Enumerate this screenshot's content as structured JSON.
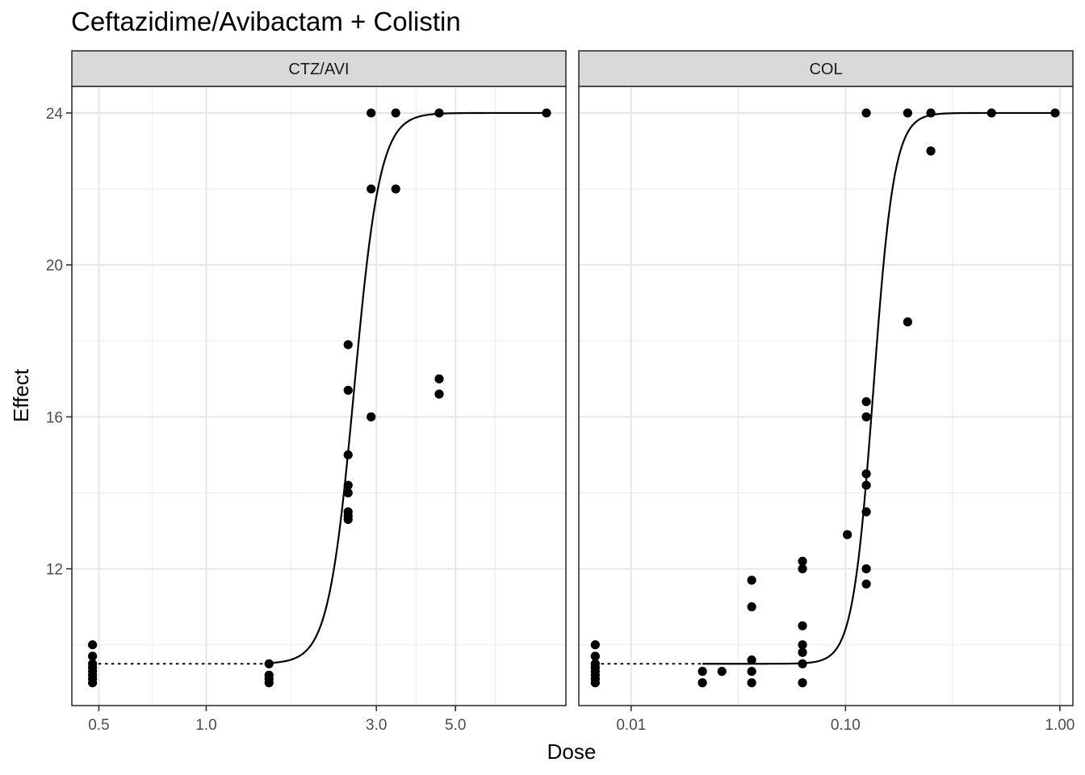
{
  "title": "Ceftazidime/Avibactam + Colistin",
  "xlabel": "Dose",
  "ylabel": "Effect",
  "chart_data": [
    {
      "type": "scatter",
      "panel": "CTZ/AVI",
      "x_scale": "log10",
      "xlim": [
        0.42,
        10.2
      ],
      "ylim": [
        8.4,
        24.7
      ],
      "x_ticks": [
        0.5,
        1.0,
        3.0,
        5.0
      ],
      "x_tick_labels": [
        "0.5",
        "1.0",
        "3.0",
        "5.0"
      ],
      "y_ticks": [
        12,
        16,
        20,
        24
      ],
      "y_tick_labels": [
        "12",
        "16",
        "20",
        "24"
      ],
      "points": [
        [
          0.48,
          10.0
        ],
        [
          0.48,
          9.7
        ],
        [
          0.48,
          9.5
        ],
        [
          0.48,
          9.4
        ],
        [
          0.48,
          9.3
        ],
        [
          0.48,
          9.2
        ],
        [
          0.48,
          9.1
        ],
        [
          0.48,
          9.0
        ],
        [
          1.5,
          9.5
        ],
        [
          1.5,
          9.2
        ],
        [
          1.5,
          9.1
        ],
        [
          1.5,
          9.0
        ],
        [
          2.5,
          17.9
        ],
        [
          2.5,
          16.7
        ],
        [
          2.5,
          15.0
        ],
        [
          2.5,
          14.2
        ],
        [
          2.5,
          14.0
        ],
        [
          2.5,
          13.5
        ],
        [
          2.5,
          13.4
        ],
        [
          2.5,
          13.3
        ],
        [
          2.9,
          24.0
        ],
        [
          2.9,
          22.0
        ],
        [
          2.9,
          16.0
        ],
        [
          3.4,
          24.0
        ],
        [
          3.4,
          22.0
        ],
        [
          4.5,
          24.0
        ],
        [
          4.5,
          17.0
        ],
        [
          4.5,
          16.6
        ],
        [
          9.0,
          24.0
        ]
      ],
      "curve": {
        "model": "4-parameter log-logistic",
        "bottom": 9.5,
        "top": 24.0,
        "ec50": 2.6,
        "hill": 12,
        "x_from": 1.5,
        "x_to": 9.0
      },
      "reference_line": {
        "style": "dotted",
        "y": 9.5,
        "x_from": 0.48,
        "x_to": 1.5
      }
    },
    {
      "type": "scatter",
      "panel": "COL",
      "x_scale": "log10",
      "xlim": [
        0.0057,
        1.15
      ],
      "ylim": [
        8.4,
        24.7
      ],
      "x_ticks": [
        0.01,
        0.1,
        1.0
      ],
      "x_tick_labels": [
        "0.01",
        "0.10",
        "1.00"
      ],
      "y_ticks": [
        12,
        16,
        20,
        24
      ],
      "y_tick_labels": [
        "12",
        "16",
        "20",
        "24"
      ],
      "points": [
        [
          0.0068,
          10.0
        ],
        [
          0.0068,
          9.7
        ],
        [
          0.0068,
          9.5
        ],
        [
          0.0068,
          9.4
        ],
        [
          0.0068,
          9.3
        ],
        [
          0.0068,
          9.2
        ],
        [
          0.0068,
          9.1
        ],
        [
          0.0068,
          9.0
        ],
        [
          0.0215,
          9.3
        ],
        [
          0.0215,
          9.0
        ],
        [
          0.0265,
          9.3
        ],
        [
          0.0365,
          11.7
        ],
        [
          0.0365,
          11.0
        ],
        [
          0.0365,
          9.6
        ],
        [
          0.0365,
          9.3
        ],
        [
          0.0365,
          9.0
        ],
        [
          0.063,
          12.2
        ],
        [
          0.063,
          12.0
        ],
        [
          0.063,
          10.5
        ],
        [
          0.063,
          10.0
        ],
        [
          0.063,
          9.8
        ],
        [
          0.063,
          9.5
        ],
        [
          0.063,
          9.0
        ],
        [
          0.102,
          12.9
        ],
        [
          0.125,
          24.0
        ],
        [
          0.125,
          16.4
        ],
        [
          0.125,
          16.0
        ],
        [
          0.125,
          14.5
        ],
        [
          0.125,
          14.2
        ],
        [
          0.125,
          13.5
        ],
        [
          0.125,
          12.0
        ],
        [
          0.125,
          11.6
        ],
        [
          0.195,
          24.0
        ],
        [
          0.195,
          18.5
        ],
        [
          0.25,
          24.0
        ],
        [
          0.25,
          23.0
        ],
        [
          0.48,
          24.0
        ],
        [
          0.95,
          24.0
        ]
      ],
      "curve": {
        "model": "4-parameter log-logistic",
        "bottom": 9.5,
        "top": 24.0,
        "ec50": 0.135,
        "hill": 9,
        "x_from": 0.0215,
        "x_to": 0.95
      },
      "reference_line": {
        "style": "dotted",
        "y": 9.5,
        "x_from": 0.0068,
        "x_to": 0.0215
      }
    }
  ]
}
